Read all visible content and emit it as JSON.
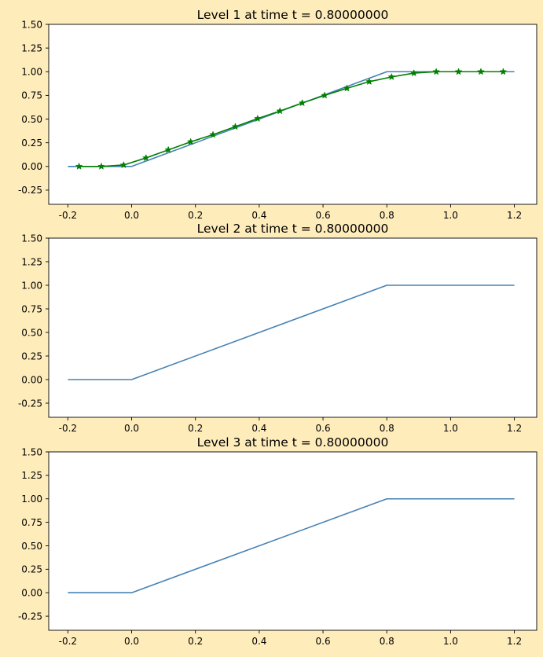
{
  "figure": {
    "background": "#feecbb"
  },
  "chart_data": [
    {
      "type": "line",
      "title": "Level 1 at time t =      0.80000000",
      "xlabel": "",
      "ylabel": "",
      "xlim": [
        -0.26,
        1.27
      ],
      "ylim": [
        -0.4,
        1.5
      ],
      "xticks": [
        "-0.2",
        "0.0",
        "0.2",
        "0.4",
        "0.6",
        "0.8",
        "1.0",
        "1.2"
      ],
      "yticks": [
        "-0.25",
        "0.00",
        "0.25",
        "0.50",
        "0.75",
        "1.00",
        "1.25",
        "1.50"
      ],
      "grid": false,
      "series": [
        {
          "color": "#4682b4",
          "marker": "none",
          "x": [
            -0.2,
            0.0,
            0.8,
            1.2
          ],
          "y": [
            0.0,
            0.0,
            1.0,
            1.0
          ]
        },
        {
          "color": "#008000",
          "marker": "star",
          "x": [
            -0.165,
            -0.095,
            -0.025,
            0.045,
            0.115,
            0.185,
            0.255,
            0.325,
            0.395,
            0.465,
            0.535,
            0.605,
            0.675,
            0.745,
            0.815,
            0.885,
            0.955,
            1.025,
            1.095,
            1.165
          ],
          "y": [
            0.0,
            0.0,
            0.015,
            0.09,
            0.175,
            0.26,
            0.335,
            0.42,
            0.505,
            0.585,
            0.67,
            0.75,
            0.825,
            0.895,
            0.945,
            0.985,
            1.0,
            1.0,
            1.0,
            1.0
          ]
        }
      ]
    },
    {
      "type": "line",
      "title": "Level 2 at time t =      0.80000000",
      "xlabel": "",
      "ylabel": "",
      "xlim": [
        -0.26,
        1.27
      ],
      "ylim": [
        -0.4,
        1.5
      ],
      "xticks": [
        "-0.2",
        "0.0",
        "0.2",
        "0.4",
        "0.6",
        "0.8",
        "1.0",
        "1.2"
      ],
      "yticks": [
        "-0.25",
        "0.00",
        "0.25",
        "0.50",
        "0.75",
        "1.00",
        "1.25",
        "1.50"
      ],
      "grid": false,
      "series": [
        {
          "color": "#4682b4",
          "marker": "none",
          "x": [
            -0.2,
            0.0,
            0.8,
            1.2
          ],
          "y": [
            0.0,
            0.0,
            1.0,
            1.0
          ]
        }
      ]
    },
    {
      "type": "line",
      "title": "Level 3 at time t =      0.80000000",
      "xlabel": "",
      "ylabel": "",
      "xlim": [
        -0.26,
        1.27
      ],
      "ylim": [
        -0.4,
        1.5
      ],
      "xticks": [
        "-0.2",
        "0.0",
        "0.2",
        "0.4",
        "0.6",
        "0.8",
        "1.0",
        "1.2"
      ],
      "yticks": [
        "-0.25",
        "0.00",
        "0.25",
        "0.50",
        "0.75",
        "1.00",
        "1.25",
        "1.50"
      ],
      "grid": false,
      "series": [
        {
          "color": "#4682b4",
          "marker": "none",
          "x": [
            -0.2,
            0.0,
            0.8,
            1.2
          ],
          "y": [
            0.0,
            0.0,
            1.0,
            1.0
          ]
        }
      ]
    }
  ]
}
